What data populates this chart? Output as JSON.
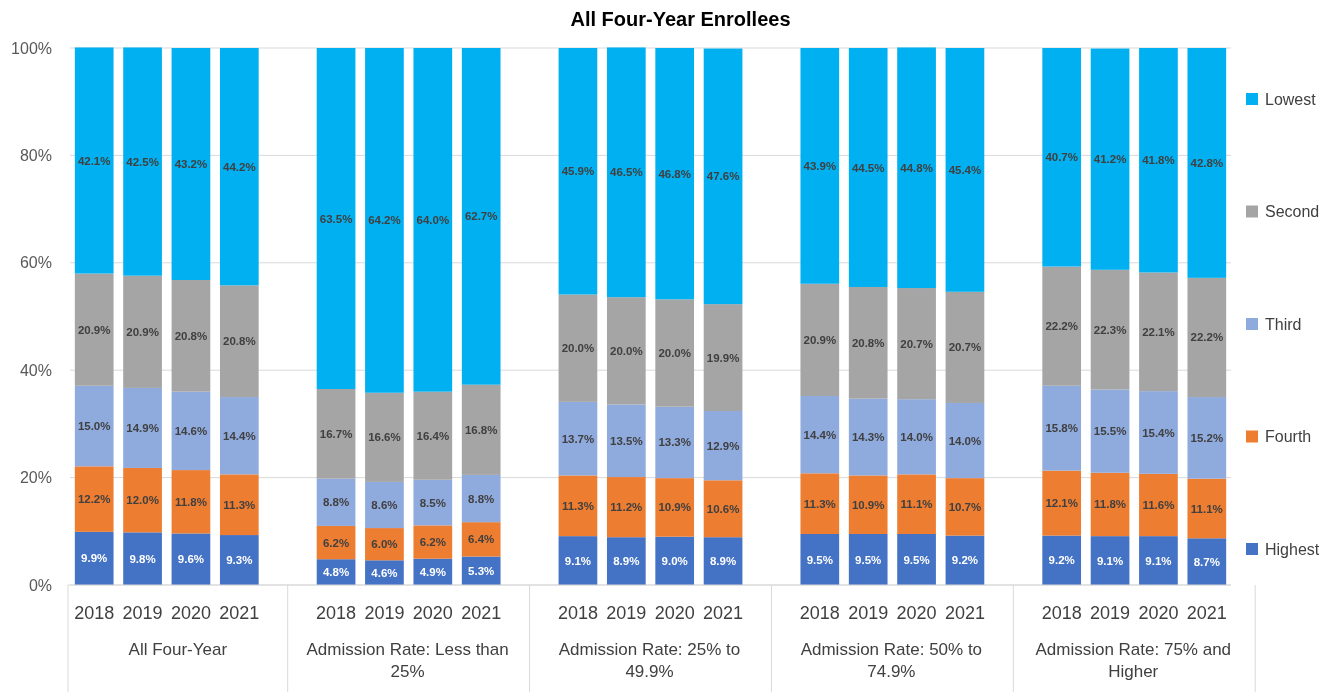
{
  "chart_data": {
    "type": "bar",
    "title": "All Four-Year Enrollees",
    "stacked": true,
    "categories": [
      "2018",
      "2019",
      "2020",
      "2021",
      null,
      "2018",
      "2019",
      "2020",
      "2021",
      null,
      "2018",
      "2019",
      "2020",
      "2021",
      null,
      "2018",
      "2019",
      "2020",
      "2021",
      null,
      "2018",
      "2019",
      "2020",
      "2021"
    ],
    "annotations": [
      "All Four-Year",
      "Admission Rate: Less than 25%",
      "Admission Rate: 25% to 49.9%",
      "Admission Rate: 50% to 74.9%",
      "Admission Rate: 75% and Higher"
    ],
    "series": [
      {
        "name": "Highest",
        "color": "#4472c4",
        "values": [
          9.9,
          9.8,
          9.6,
          9.3,
          null,
          4.8,
          4.6,
          4.9,
          5.3,
          null,
          9.1,
          8.9,
          9.0,
          8.9,
          null,
          9.5,
          9.5,
          9.5,
          9.2,
          null,
          9.2,
          9.1,
          9.1,
          8.7
        ],
        "value_labels": [
          "9.9%",
          "9.8%",
          "9.6%",
          "9.3%",
          null,
          "4.8%",
          "4.6%",
          "4.9%",
          "5.3%",
          null,
          "9.1%",
          "8.9%",
          "9.0%",
          "8.9%",
          null,
          "9.5%",
          "9.5%",
          "9.5%",
          "9.2%",
          null,
          "9.2%",
          "9.1%",
          "9.1%",
          "8.7%"
        ]
      },
      {
        "name": "Fourth",
        "color": "#ed7d31",
        "values": [
          12.2,
          12.0,
          11.8,
          11.3,
          null,
          6.2,
          6.0,
          6.2,
          6.4,
          null,
          11.3,
          11.2,
          10.9,
          10.6,
          null,
          11.3,
          10.9,
          11.1,
          10.7,
          null,
          12.1,
          11.8,
          11.6,
          11.1
        ],
        "value_labels": [
          "12.2%",
          "12.0%",
          "11.8%",
          "11.3%",
          null,
          "6.2%",
          "6.0%",
          "6.2%",
          "6.4%",
          null,
          "11.3%",
          "11.2%",
          "10.9%",
          "10.6%",
          null,
          "11.3%",
          "10.9%",
          "11.1%",
          "10.7%",
          null,
          "12.1%",
          "11.8%",
          "11.6%",
          "11.1%"
        ]
      },
      {
        "name": "Third",
        "color": "#8faadc",
        "values": [
          15.0,
          14.9,
          14.6,
          14.4,
          null,
          8.8,
          8.6,
          8.5,
          8.8,
          null,
          13.7,
          13.5,
          13.3,
          12.9,
          null,
          14.4,
          14.3,
          14.0,
          14.0,
          null,
          15.8,
          15.5,
          15.4,
          15.2
        ],
        "value_labels": [
          "15.0%",
          "14.9%",
          "14.6%",
          "14.4%",
          null,
          "8.8%",
          "8.6%",
          "8.5%",
          "8.8%",
          null,
          "13.7%",
          "13.5%",
          "13.3%",
          "12.9%",
          null,
          "14.4%",
          "14.3%",
          "14.0%",
          "14.0%",
          null,
          "15.8%",
          "15.5%",
          "15.4%",
          "15.2%"
        ]
      },
      {
        "name": "Second",
        "color": "#a5a5a5",
        "values": [
          20.9,
          20.9,
          20.8,
          20.8,
          null,
          16.7,
          16.6,
          16.4,
          16.8,
          null,
          20.0,
          20.0,
          20.0,
          19.9,
          null,
          20.9,
          20.8,
          20.7,
          20.7,
          null,
          22.2,
          22.3,
          22.1,
          22.2
        ],
        "value_labels": [
          "20.9%",
          "20.9%",
          "20.8%",
          "20.8%",
          null,
          "16.7%",
          "16.6%",
          "16.4%",
          "16.8%",
          null,
          "20.0%",
          "20.0%",
          "20.0%",
          "19.9%",
          null,
          "20.9%",
          "20.8%",
          "20.7%",
          "20.7%",
          null,
          "22.2%",
          "22.3%",
          "22.1%",
          "22.2%"
        ]
      },
      {
        "name": "Lowest",
        "color": "#00b0f0",
        "values": [
          42.1,
          42.5,
          43.2,
          44.2,
          null,
          63.5,
          64.2,
          64.0,
          62.7,
          null,
          45.9,
          46.5,
          46.8,
          47.6,
          null,
          43.9,
          44.5,
          44.8,
          45.4,
          null,
          40.7,
          41.2,
          41.8,
          42.8
        ],
        "value_labels": [
          "42.1%",
          "42.5%",
          "43.2%",
          "44.2%",
          null,
          "63.5%",
          "64.2%",
          "64.0%",
          "62.7%",
          null,
          "45.9%",
          "46.5%",
          "46.8%",
          "47.6%",
          null,
          "43.9%",
          "44.5%",
          "44.8%",
          "45.4%",
          null,
          "40.7%",
          "41.2%",
          "41.8%",
          "42.8%"
        ]
      }
    ],
    "ylim": [
      0,
      100
    ],
    "yticks": [
      {
        "value": 0,
        "label": "0%"
      },
      {
        "value": 20,
        "label": "20%"
      },
      {
        "value": 40,
        "label": "40%"
      },
      {
        "value": 60,
        "label": "60%"
      },
      {
        "value": 80,
        "label": "80%"
      },
      {
        "value": 100,
        "label": "100%"
      }
    ],
    "grid": "y",
    "legend": "right"
  }
}
